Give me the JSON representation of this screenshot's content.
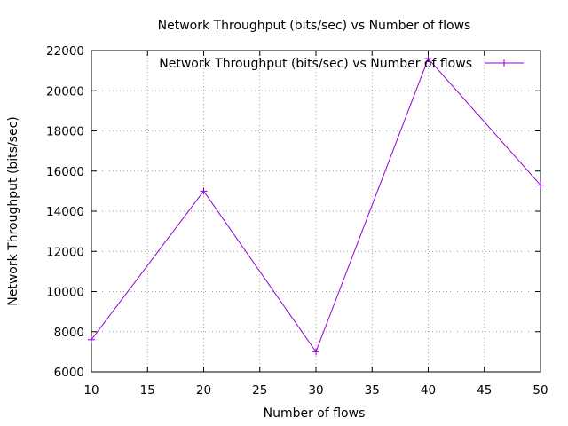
{
  "chart_data": {
    "type": "line",
    "title": "Network Throughput (bits/sec) vs Number of flows",
    "xlabel": "Number of flows",
    "ylabel": "Network Throughput (bits/sec)",
    "xlim": [
      10,
      50
    ],
    "ylim": [
      6000,
      22000
    ],
    "x_ticks": [
      10,
      15,
      20,
      25,
      30,
      35,
      40,
      45,
      50
    ],
    "y_ticks": [
      6000,
      8000,
      10000,
      12000,
      14000,
      16000,
      18000,
      20000,
      22000
    ],
    "grid": true,
    "legend_position": "top-right",
    "series": [
      {
        "name": "Network Throughput (bits/sec) vs Number of flows",
        "color": "#9400d3",
        "marker": "plus",
        "x": [
          10,
          20,
          30,
          40,
          50
        ],
        "y": [
          7600,
          15000,
          7000,
          21600,
          15300
        ]
      }
    ]
  }
}
